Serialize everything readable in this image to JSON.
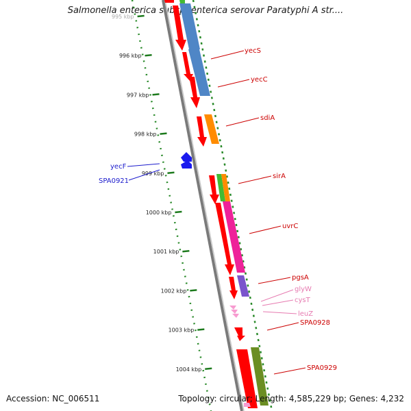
{
  "title": "Salmonella enterica subsp. enterica serovar Paratyphi A str....",
  "footer": {
    "accession": "Accession: NC_006511",
    "summary": "Topology: circular; Length: 4,585,229 bp; Genes: 4,232"
  },
  "ticks": [
    {
      "kbp": 995,
      "label": "995 kbp"
    },
    {
      "kbp": 996,
      "label": "996 kbp"
    },
    {
      "kbp": 997,
      "label": "997 kbp"
    },
    {
      "kbp": 998,
      "label": "998 kbp"
    },
    {
      "kbp": 999,
      "label": "999 kbp"
    },
    {
      "kbp": 1000,
      "label": "1000 kbp"
    },
    {
      "kbp": 1001,
      "label": "1001 kbp"
    },
    {
      "kbp": 1002,
      "label": "1002 kbp"
    },
    {
      "kbp": 1003,
      "label": "1003 kbp"
    },
    {
      "kbp": 1004,
      "label": "1004 kbp"
    }
  ],
  "gene_labels": {
    "yecS": "yecS",
    "yecC": "yecC",
    "sdiA": "sdiA",
    "sirA": "sirA",
    "uvrC": "uvrC",
    "pgsA": "pgsA",
    "glyW": "glyW",
    "cysT": "cysT",
    "leuZ": "leuZ",
    "SPA0928": "SPA0928",
    "SPA0929": "SPA0929",
    "yecF": "yecF",
    "SPA0921": "SPA0921"
  },
  "colors": {
    "gene": "#ff0000",
    "rna": "#f79bd0",
    "minus_gene": "#1a1aee",
    "label_red": "#cc0000",
    "label_pink": "#e67ab0",
    "label_blue": "#1a1acc",
    "backbone": "#7a7a7a",
    "tick": "#1d7a1d"
  }
}
